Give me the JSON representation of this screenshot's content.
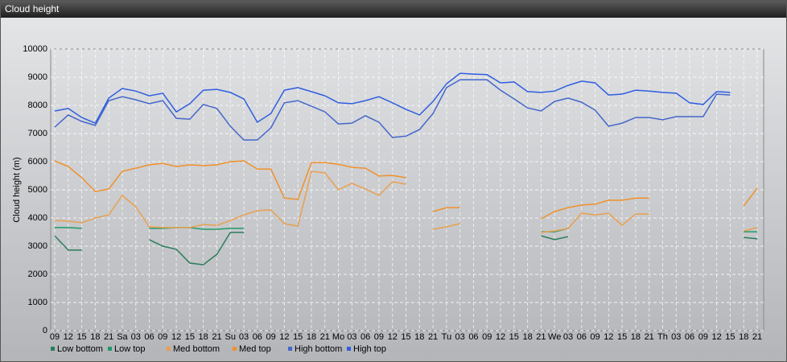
{
  "header": {
    "title": "Cloud height"
  },
  "chart_data": {
    "type": "line",
    "ylabel": "Cloud height (m)",
    "categories": [
      "09",
      "12",
      "15",
      "18",
      "21",
      "Sa",
      "03",
      "06",
      "09",
      "12",
      "15",
      "18",
      "21",
      "Su",
      "03",
      "06",
      "09",
      "12",
      "15",
      "18",
      "21",
      "Mo",
      "03",
      "06",
      "09",
      "12",
      "15",
      "18",
      "21",
      "Tu",
      "03",
      "06",
      "09",
      "12",
      "15",
      "18",
      "21",
      "We",
      "03",
      "06",
      "09",
      "12",
      "15",
      "18",
      "21",
      "Th",
      "03",
      "06",
      "09",
      "12",
      "15",
      "18",
      "21"
    ],
    "ylim": [
      0,
      10000
    ],
    "yticks": [
      0,
      1000,
      2000,
      3000,
      4000,
      5000,
      6000,
      7000,
      8000,
      9000,
      10000
    ],
    "grid": true,
    "series": [
      {
        "name": "Low bottom",
        "color": "#2b7d5a",
        "values": [
          3370,
          2860,
          2860,
          null,
          null,
          null,
          null,
          3230,
          3000,
          2890,
          2400,
          2340,
          2710,
          3490,
          3490,
          null,
          null,
          null,
          null,
          null,
          null,
          null,
          null,
          null,
          null,
          null,
          null,
          null,
          null,
          null,
          null,
          null,
          null,
          null,
          null,
          null,
          3370,
          3230,
          3340,
          null,
          null,
          null,
          null,
          null,
          null,
          null,
          null,
          null,
          null,
          null,
          null,
          3310,
          3260
        ]
      },
      {
        "name": "Low top",
        "color": "#1f9a6a",
        "values": [
          3660,
          3660,
          3630,
          null,
          null,
          null,
          null,
          3630,
          3630,
          3660,
          3660,
          3600,
          3600,
          3630,
          3630,
          null,
          null,
          null,
          null,
          null,
          null,
          null,
          null,
          null,
          null,
          null,
          null,
          null,
          null,
          null,
          null,
          null,
          null,
          null,
          null,
          null,
          3510,
          3510,
          3630,
          null,
          null,
          null,
          null,
          null,
          null,
          null,
          null,
          null,
          null,
          null,
          null,
          3510,
          3510
        ]
      },
      {
        "name": "Med bottom",
        "color": "#e8a050",
        "values": [
          3910,
          3890,
          3830,
          4000,
          4110,
          4800,
          4400,
          3690,
          3660,
          3660,
          3660,
          3770,
          3740,
          3910,
          4110,
          4260,
          4290,
          3800,
          3710,
          5660,
          5600,
          5000,
          5230,
          5030,
          4800,
          5290,
          5200,
          null,
          3600,
          3690,
          3800,
          null,
          null,
          null,
          null,
          null,
          3490,
          3540,
          3630,
          4170,
          4110,
          4170,
          3740,
          4140,
          4140,
          null,
          null,
          null,
          null,
          null,
          null,
          3540,
          3660
        ]
      },
      {
        "name": "Med top",
        "color": "#f0902c",
        "values": [
          6030,
          5830,
          5430,
          4940,
          5030,
          5660,
          5770,
          5890,
          5940,
          5830,
          5890,
          5860,
          5890,
          6000,
          6030,
          5740,
          5740,
          4710,
          4660,
          5970,
          5970,
          5910,
          5800,
          5770,
          5490,
          5510,
          5430,
          null,
          4230,
          4370,
          4370,
          null,
          null,
          null,
          null,
          null,
          3970,
          4230,
          4370,
          4460,
          4490,
          4630,
          4630,
          4710,
          4710,
          null,
          null,
          null,
          null,
          null,
          null,
          4430,
          5060
        ]
      },
      {
        "name": "High bottom",
        "color": "#4466cc",
        "values": [
          7230,
          7660,
          7430,
          7290,
          8170,
          8310,
          8200,
          8060,
          8170,
          7540,
          7510,
          8030,
          7890,
          7260,
          6770,
          6770,
          7200,
          8090,
          8170,
          7970,
          7770,
          7340,
          7370,
          7630,
          7400,
          6860,
          6910,
          7140,
          7710,
          8630,
          8910,
          8910,
          8910,
          8540,
          8230,
          7910,
          7800,
          8140,
          8260,
          8110,
          7830,
          7260,
          7370,
          7570,
          7570,
          7490,
          7600,
          7600,
          7600,
          8400,
          8370,
          null,
          null
        ]
      },
      {
        "name": "High top",
        "color": "#2f5ee0",
        "values": [
          7800,
          7890,
          7570,
          7370,
          8260,
          8600,
          8510,
          8340,
          8430,
          7770,
          8060,
          8540,
          8570,
          8460,
          8230,
          7400,
          7710,
          8540,
          8630,
          8490,
          8340,
          8090,
          8060,
          8170,
          8310,
          8090,
          7860,
          7660,
          8140,
          8770,
          9140,
          9110,
          9090,
          8800,
          8830,
          8490,
          8460,
          8510,
          8710,
          8860,
          8800,
          8370,
          8400,
          8540,
          8510,
          8460,
          8430,
          8090,
          8030,
          8490,
          8460,
          null,
          null
        ]
      }
    ]
  }
}
